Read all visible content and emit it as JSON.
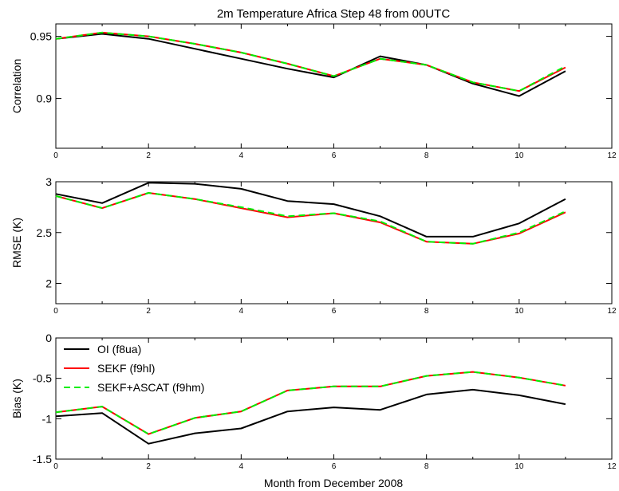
{
  "colors": {
    "axis": "#000000"
  },
  "chart_data": {
    "title": "2m Temperature   Africa    Step 48 from 00UTC",
    "xlabel": "Month from December 2008",
    "type": "line",
    "xlim": [
      0,
      12
    ],
    "xticks": [
      "0",
      "2",
      "4",
      "6",
      "8",
      "10",
      "12"
    ],
    "x": [
      0,
      1,
      2,
      3,
      4,
      5,
      6,
      7,
      8,
      9,
      10,
      11
    ],
    "series_styles": [
      {
        "color": "#000000",
        "dash": "none"
      },
      {
        "color": "#ff0000",
        "dash": "none"
      },
      {
        "color": "#00ee00",
        "dash": "8,5"
      }
    ],
    "legend": {
      "placement": "top-left of bottom panel",
      "entries": [
        "OI (f8ua)",
        "SEKF (f9hl)",
        "SEKF+ASCAT (f9hm)"
      ]
    },
    "panels": [
      {
        "ylabel": "Correlation",
        "ylim": [
          0.86,
          0.96
        ],
        "yticks": [
          {
            "value": 0.95,
            "label": "0.95"
          },
          {
            "value": 0.9,
            "label": "0.9"
          }
        ],
        "series": [
          {
            "name": "OI (f8ua)",
            "values": [
              0.948,
              0.952,
              0.948,
              0.94,
              0.932,
              0.924,
              0.917,
              0.934,
              0.927,
              0.912,
              0.902,
              0.922
            ]
          },
          {
            "name": "SEKF (f9hl)",
            "values": [
              0.948,
              0.953,
              0.95,
              0.944,
              0.937,
              0.928,
              0.918,
              0.932,
              0.927,
              0.913,
              0.906,
              0.925
            ]
          },
          {
            "name": "SEKF+ASCAT (f9hm)",
            "values": [
              0.948,
              0.953,
              0.95,
              0.944,
              0.937,
              0.928,
              0.918,
              0.932,
              0.927,
              0.913,
              0.906,
              0.926
            ]
          }
        ]
      },
      {
        "ylabel": "RMSE (K)",
        "ylim": [
          1.8,
          3.0
        ],
        "yticks": [
          {
            "value": 3,
            "label": "3"
          },
          {
            "value": 2.5,
            "label": "2.5"
          },
          {
            "value": 2,
            "label": "2"
          }
        ],
        "series": [
          {
            "name": "OI (f8ua)",
            "values": [
              2.88,
              2.79,
              2.99,
              2.98,
              2.93,
              2.81,
              2.78,
              2.66,
              2.46,
              2.46,
              2.59,
              2.83
            ]
          },
          {
            "name": "SEKF (f9hl)",
            "values": [
              2.86,
              2.74,
              2.89,
              2.83,
              2.74,
              2.65,
              2.69,
              2.6,
              2.41,
              2.39,
              2.49,
              2.7
            ]
          },
          {
            "name": "SEKF+ASCAT (f9hm)",
            "values": [
              2.86,
              2.74,
              2.89,
              2.83,
              2.75,
              2.66,
              2.69,
              2.61,
              2.41,
              2.39,
              2.5,
              2.71
            ]
          }
        ]
      },
      {
        "ylabel": "Bias (K)",
        "ylim": [
          -1.5,
          0
        ],
        "yticks": [
          {
            "value": 0,
            "label": "0"
          },
          {
            "value": -0.5,
            "label": "-0.5"
          },
          {
            "value": -1,
            "label": "-1"
          },
          {
            "value": -1.5,
            "label": "-1.5"
          }
        ],
        "series": [
          {
            "name": "OI (f8ua)",
            "values": [
              -0.97,
              -0.93,
              -1.31,
              -1.18,
              -1.12,
              -0.91,
              -0.86,
              -0.89,
              -0.7,
              -0.64,
              -0.71,
              -0.82
            ]
          },
          {
            "name": "SEKF (f9hl)",
            "values": [
              -0.92,
              -0.85,
              -1.19,
              -0.99,
              -0.91,
              -0.65,
              -0.6,
              -0.6,
              -0.47,
              -0.42,
              -0.49,
              -0.59
            ]
          },
          {
            "name": "SEKF+ASCAT (f9hm)",
            "values": [
              -0.92,
              -0.85,
              -1.19,
              -0.99,
              -0.91,
              -0.65,
              -0.6,
              -0.6,
              -0.47,
              -0.42,
              -0.49,
              -0.59
            ]
          }
        ]
      }
    ]
  }
}
